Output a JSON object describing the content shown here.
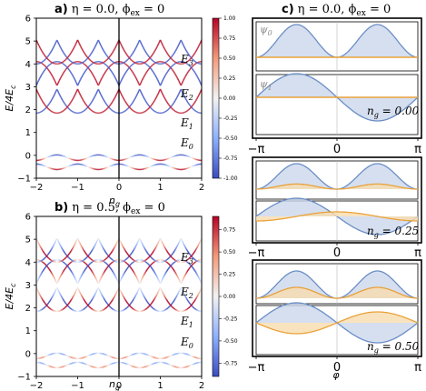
{
  "chart_data": [
    {
      "panel": "a",
      "type": "line",
      "title": "a) η = 0.0, ϕex = 0",
      "title_parts": {
        "letter": "a)",
        "text": "η = 0.0, ϕ",
        "sub": "ex",
        "rest": " = 0"
      },
      "xlabel": "n_g",
      "ylabel": "E/4E_c",
      "xlim": [
        -2,
        2
      ],
      "ylim": [
        -1,
        6
      ],
      "xticks": [
        "-2",
        "-1",
        "0",
        "1",
        "2"
      ],
      "yticks": [
        "-1",
        "0",
        "1",
        "2",
        "3",
        "4",
        "5",
        "6"
      ],
      "eta": 0.0,
      "level_labels": [
        "E3",
        "E2",
        "E1",
        "E0"
      ],
      "colorbar": {
        "range": [
          -1.0,
          1.0
        ],
        "ticks": [
          "1.00",
          "0.75",
          "0.50",
          "0.25",
          "0.00",
          "-0.25",
          "-0.50",
          "-0.75",
          "-1.00"
        ]
      }
    },
    {
      "panel": "b",
      "type": "line",
      "title": "b) η = 0.5, ϕex = 0",
      "title_parts": {
        "letter": "b)",
        "text": "η = 0.5, ϕ",
        "sub": "ex",
        "rest": " = 0"
      },
      "xlabel": "n_g",
      "ylabel": "E/4E_c",
      "xlim": [
        -2,
        2
      ],
      "ylim": [
        -1,
        6
      ],
      "xticks": [
        "-2",
        "-1",
        "0",
        "1",
        "2"
      ],
      "yticks": [
        "-1",
        "0",
        "1",
        "2",
        "3",
        "4",
        "5",
        "6"
      ],
      "eta": 0.5,
      "level_labels": [
        "E3",
        "E2",
        "E1",
        "E0"
      ],
      "colorbar": {
        "range": [
          -0.9,
          0.9
        ],
        "ticks": [
          "0.75",
          "0.50",
          "0.25",
          "0.00",
          "-0.25",
          "-0.50",
          "-0.75"
        ]
      }
    },
    {
      "panel": "c",
      "type": "area",
      "title": "c) η = 0.0, ϕex = 0",
      "title_parts": {
        "letter": "c)",
        "text": "η = 0.0, ϕ",
        "sub": "ex",
        "rest": " = 0"
      },
      "xlabel": "φ",
      "xticks": [
        "−π",
        "0",
        "π"
      ],
      "wavefunction_labels": [
        "ψ0",
        "ψ1"
      ],
      "ng_values": [
        "n_g = 0.00",
        "n_g = 0.25",
        "n_g = 0.50"
      ],
      "series": [
        {
          "ng": 0.0,
          "psi0_real": "|sin φ| (double hump)",
          "psi0_imag": 0,
          "psi1_real": "-sin φ",
          "psi1_imag": 0
        },
        {
          "ng": 0.25,
          "psi0_imag_amp": 0.25,
          "psi1_imag_amp": 0.3
        },
        {
          "ng": 0.5,
          "psi0_imag_amp": 0.45,
          "psi1_imag_amp": 0.45
        }
      ]
    }
  ],
  "labels": {
    "ylabel": "E/4E",
    "ylabel_sub": "c",
    "xlabel": "n",
    "xlabel_sub": "g",
    "E3": "E",
    "E3_sub": "3",
    "E2": "E",
    "E2_sub": "2",
    "E1": "E",
    "E1_sub": "1",
    "E0": "E",
    "E0_sub": "0",
    "psi0": "ψ",
    "psi0_sub": "0",
    "psi1": "ψ",
    "psi1_sub": "1",
    "ng_prefix": "n",
    "ng_sub": "g",
    "ng0": " = 0.00",
    "ng1": " = 0.25",
    "ng2": " = 0.50",
    "phi": "φ"
  },
  "colors": {
    "red": "#b40426",
    "blue": "#3b4cc0",
    "white": "#f2f2f2",
    "psi_fill": "#cad7eb",
    "psi_line": "#6b8ec6",
    "orange": "#e9a23b",
    "orange_fill": "#f7dcae"
  }
}
